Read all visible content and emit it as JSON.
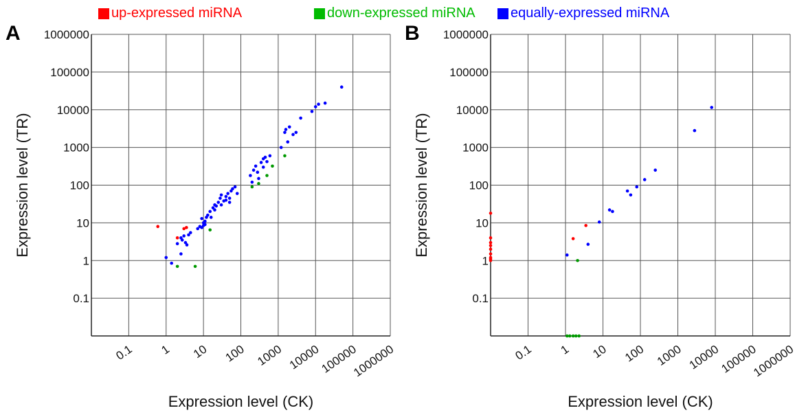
{
  "legend": [
    {
      "label": "up-expressed miRNA",
      "color": "#ff0000"
    },
    {
      "label": "down-expressed miRNA",
      "color": "#009900"
    },
    {
      "label": "equally-expressed miRNA",
      "color": "#0000ff"
    }
  ],
  "chart_data": [
    {
      "type": "scatter",
      "panel_label": "A",
      "xlabel": "Expression level (CK)",
      "ylabel": "Expression level (TR)",
      "x_scale": "log",
      "y_scale": "log",
      "xlim": [
        0.01,
        1000000
      ],
      "ylim": [
        0.01,
        1000000
      ],
      "x_ticks": [
        "0.1",
        "1",
        "10",
        "100",
        "1000",
        "10000",
        "100000",
        "1000000"
      ],
      "y_ticks": [
        "0.1",
        "1",
        "10",
        "100",
        "1000",
        "10000",
        "100000",
        "1000000"
      ],
      "grid": true,
      "series": [
        {
          "name": "up-expressed miRNA",
          "color": "#ff0000",
          "points": [
            [
              0.6,
              8
            ],
            [
              2,
              4
            ],
            [
              3,
              7
            ],
            [
              3.5,
              7.5
            ]
          ]
        },
        {
          "name": "down-expressed miRNA",
          "color": "#009900",
          "points": [
            [
              2,
              0.7
            ],
            [
              6,
              0.7
            ],
            [
              15,
              6.5
            ],
            [
              200,
              90
            ],
            [
              300,
              110
            ],
            [
              500,
              180
            ],
            [
              700,
              320
            ],
            [
              1500,
              600
            ]
          ]
        },
        {
          "name": "equally-expressed miRNA",
          "color": "#0000ff",
          "points": [
            [
              1,
              1.2
            ],
            [
              1.4,
              0.85
            ],
            [
              2,
              2.8
            ],
            [
              2.5,
              1.5
            ],
            [
              2.7,
              3.5
            ],
            [
              3,
              4.5
            ],
            [
              3.3,
              3
            ],
            [
              3.6,
              2.6
            ],
            [
              4,
              4.8
            ],
            [
              4.5,
              5.5
            ],
            [
              2.5,
              4
            ],
            [
              7,
              7
            ],
            [
              8,
              8
            ],
            [
              9,
              7.5
            ],
            [
              10,
              8.5
            ],
            [
              10,
              10
            ],
            [
              11,
              11
            ],
            [
              12,
              14
            ],
            [
              9,
              13
            ],
            [
              11,
              9
            ],
            [
              13,
              16
            ],
            [
              15,
              20
            ],
            [
              16,
              14
            ],
            [
              18,
              25
            ],
            [
              20,
              22
            ],
            [
              20,
              30
            ],
            [
              22,
              28
            ],
            [
              25,
              35
            ],
            [
              28,
              45
            ],
            [
              30,
              30
            ],
            [
              30,
              55
            ],
            [
              35,
              38
            ],
            [
              40,
              50
            ],
            [
              45,
              60
            ],
            [
              50,
              45
            ],
            [
              55,
              70
            ],
            [
              60,
              80
            ],
            [
              70,
              90
            ],
            [
              80,
              60
            ],
            [
              50,
              35
            ],
            [
              40,
              40
            ],
            [
              180,
              180
            ],
            [
              200,
              120
            ],
            [
              220,
              250
            ],
            [
              250,
              320
            ],
            [
              280,
              220
            ],
            [
              300,
              150
            ],
            [
              350,
              400
            ],
            [
              400,
              500
            ],
            [
              450,
              550
            ],
            [
              500,
              420
            ],
            [
              600,
              600
            ],
            [
              400,
              300
            ],
            [
              1200,
              1000
            ],
            [
              1500,
              2500
            ],
            [
              1800,
              1400
            ],
            [
              2000,
              3500
            ],
            [
              2500,
              2200
            ],
            [
              3000,
              2500
            ],
            [
              1600,
              3000
            ],
            [
              4000,
              6000
            ],
            [
              8000,
              9000
            ],
            [
              10000,
              12000
            ],
            [
              12000,
              14000
            ],
            [
              18000,
              15000
            ],
            [
              50000,
              40000
            ]
          ]
        }
      ]
    },
    {
      "type": "scatter",
      "panel_label": "B",
      "xlabel": "Expression level (CK)",
      "ylabel": "Expression level (TR)",
      "x_scale": "log",
      "y_scale": "log",
      "xlim": [
        0.01,
        1000000
      ],
      "ylim": [
        0.01,
        1000000
      ],
      "x_ticks": [
        "0.1",
        "1",
        "10",
        "100",
        "1000",
        "10000",
        "100000",
        "1000000"
      ],
      "y_ticks": [
        "0.1",
        "1",
        "10",
        "100",
        "1000",
        "10000",
        "100000",
        "1000000"
      ],
      "grid": true,
      "series": [
        {
          "name": "up-expressed miRNA",
          "color": "#ff0000",
          "points": [
            [
              1.6,
              3.8
            ],
            [
              3.5,
              8.5
            ],
            [
              0.01,
              18
            ],
            [
              0.01,
              1
            ],
            [
              0.01,
              1.2
            ],
            [
              0.01,
              1.5
            ],
            [
              0.01,
              2
            ],
            [
              0.01,
              2.5
            ],
            [
              0.01,
              3
            ],
            [
              0.01,
              4
            ],
            [
              0.01,
              1.1
            ]
          ]
        },
        {
          "name": "down-expressed miRNA",
          "color": "#009900",
          "points": [
            [
              1.1,
              0.01
            ],
            [
              1.3,
              0.01
            ],
            [
              1.6,
              0.01
            ],
            [
              1.9,
              0.01
            ],
            [
              2.3,
              0.01
            ],
            [
              2.1,
              1
            ]
          ]
        },
        {
          "name": "equally-expressed miRNA",
          "color": "#0000ff",
          "points": [
            [
              1.1,
              1.4
            ],
            [
              4,
              2.7
            ],
            [
              8,
              10.5
            ],
            [
              15,
              22
            ],
            [
              18,
              20
            ],
            [
              45,
              70
            ],
            [
              55,
              55
            ],
            [
              80,
              90
            ],
            [
              130,
              140
            ],
            [
              250,
              250
            ],
            [
              2800,
              2800
            ],
            [
              8000,
              11500
            ]
          ]
        }
      ]
    }
  ]
}
